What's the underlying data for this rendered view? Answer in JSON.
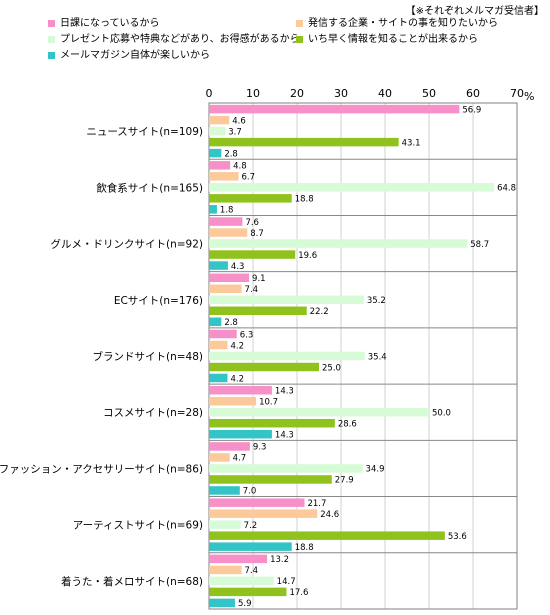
{
  "note": "【※それぞれメルマガ受信者】",
  "colors": [
    "#f78fc8",
    "#fcc99a",
    "#d6fbd6",
    "#8fc21c",
    "#33c4c8"
  ],
  "chart_data": {
    "type": "bar",
    "orientation": "horizontal",
    "title": "",
    "xlabel": "",
    "ylabel": "",
    "unit": "%",
    "xlim": [
      0,
      70
    ],
    "xticks": [
      "0",
      "10",
      "20",
      "30",
      "40",
      "50",
      "60",
      "70"
    ],
    "legend_position": "top",
    "categories": [
      "ニュースサイト(n=109)",
      "飲食系サイト(n=165)",
      "グルメ・ドリンクサイト(n=92)",
      "ECサイト(n=176)",
      "ブランドサイト(n=48)",
      "コスメサイト(n=28)",
      "ファッション・アクセサリーサイト(n=86)",
      "アーティストサイト(n=69)",
      "着うた・着メロサイト(n=68)"
    ],
    "series": [
      {
        "name": "日課になっているから",
        "values": [
          56.9,
          4.8,
          7.6,
          9.1,
          6.3,
          14.3,
          9.3,
          21.7,
          13.2
        ]
      },
      {
        "name": "発信する企業・サイトの事を知りたいから",
        "values": [
          4.6,
          6.7,
          8.7,
          7.4,
          4.2,
          10.7,
          4.7,
          24.6,
          7.4
        ]
      },
      {
        "name": "プレゼント応募や特典などがあり、お得感があるから",
        "values": [
          3.7,
          64.8,
          58.7,
          35.2,
          35.4,
          50.0,
          34.9,
          7.2,
          14.7
        ]
      },
      {
        "name": "いち早く情報を知ることが出来るから",
        "values": [
          43.1,
          18.8,
          19.6,
          22.2,
          25.0,
          28.6,
          27.9,
          53.6,
          17.6
        ]
      },
      {
        "name": "メールマガジン自体が楽しいから",
        "values": [
          2.8,
          1.8,
          4.3,
          2.8,
          4.2,
          14.3,
          7.0,
          18.8,
          5.9
        ]
      }
    ]
  }
}
